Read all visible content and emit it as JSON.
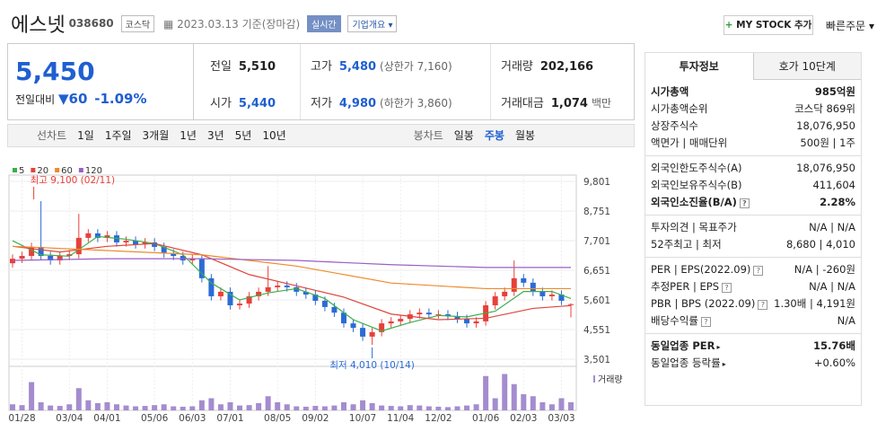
{
  "header": {
    "name": "에스넷",
    "code": "038680",
    "market": "코스닥",
    "date": "2023.03.13 기준(장마감)",
    "realtime": "실시간",
    "company_info": "기업개요",
    "my_stock": "MY STOCK 추가",
    "quick_order": "빠른주문"
  },
  "price": {
    "current": "5,450",
    "change_label": "전일대비",
    "change": "60",
    "change_pct": "-1.09%"
  },
  "quote": {
    "rows": [
      [
        {
          "label": "전일",
          "value": "5,510"
        },
        {
          "label": "고가",
          "value": "5,480",
          "note": "(상한가 7,160)"
        },
        {
          "label": "거래량",
          "value": "202,166"
        }
      ],
      [
        {
          "label": "시가",
          "value": "5,440"
        },
        {
          "label": "저가",
          "value": "4,980",
          "note": "(하한가 3,860)"
        },
        {
          "label": "거래대금",
          "value": "1,074",
          "note": "백만"
        }
      ]
    ]
  },
  "periods": {
    "line_label": "선차트",
    "line": [
      "1일",
      "1주일",
      "3개월",
      "1년",
      "3년",
      "5년",
      "10년"
    ],
    "candle_label": "봉차트",
    "candle": [
      "일봉",
      "주봉",
      "월봉"
    ],
    "active_candle": 1
  },
  "chart_data": {
    "type": "candlestick",
    "categories": [
      null,
      "01/28",
      null,
      null,
      null,
      null,
      "03/04",
      null,
      null,
      null,
      "04/01",
      null,
      null,
      null,
      null,
      "05/06",
      null,
      null,
      null,
      "06/03",
      null,
      null,
      null,
      "07/01",
      null,
      null,
      null,
      null,
      "08/05",
      null,
      null,
      null,
      "09/02",
      null,
      null,
      null,
      null,
      "10/07",
      null,
      null,
      null,
      "11/04",
      null,
      null,
      null,
      "12/02",
      null,
      null,
      null,
      null,
      "01/06",
      null,
      null,
      null,
      "02/03",
      null,
      null,
      null,
      "03/03",
      null
    ],
    "open": [
      6900,
      7060,
      7160,
      7480,
      7160,
      7000,
      7160,
      7220,
      7800,
      7960,
      7800,
      7890,
      7640,
      7700,
      7570,
      7640,
      7480,
      7250,
      7160,
      7000,
      7060,
      6370,
      5730,
      5890,
      5410,
      5470,
      5730,
      5890,
      6050,
      6110,
      6050,
      5890,
      5790,
      5570,
      5350,
      5150,
      4770,
      4610,
      4300,
      4460,
      4770,
      4840,
      4930,
      5090,
      5150,
      5090,
      5090,
      5030,
      4930,
      4770,
      4840,
      5410,
      5730,
      5890,
      6370,
      6210,
      5890,
      5730,
      5790,
      5440
    ],
    "high": [
      7210,
      7310,
      7630,
      9100,
      7310,
      7310,
      7370,
      8650,
      8110,
      8110,
      8040,
      8040,
      7850,
      7850,
      7790,
      7790,
      7630,
      7400,
      7310,
      7210,
      7210,
      6520,
      6040,
      6040,
      5620,
      5880,
      6040,
      6800,
      6260,
      6260,
      6200,
      6040,
      5940,
      5720,
      5500,
      5300,
      4920,
      4760,
      4610,
      4920,
      4990,
      5080,
      5240,
      5300,
      5300,
      5240,
      5240,
      5180,
      5080,
      4990,
      5560,
      5880,
      6040,
      7000,
      6520,
      6360,
      6040,
      5940,
      5940,
      5480
    ],
    "low": [
      6750,
      6910,
      7010,
      7010,
      6850,
      6850,
      7010,
      7070,
      7650,
      7650,
      7650,
      7490,
      7490,
      7420,
      7420,
      7330,
      7100,
      7010,
      6850,
      6850,
      6220,
      5580,
      5580,
      5260,
      5260,
      5320,
      5580,
      5740,
      5900,
      5900,
      5740,
      5640,
      5420,
      5200,
      5000,
      4620,
      4460,
      4150,
      4010,
      4310,
      4620,
      4690,
      4780,
      4940,
      4940,
      4940,
      4880,
      4780,
      4620,
      4620,
      4690,
      5260,
      5580,
      5740,
      6060,
      5740,
      5580,
      5580,
      5420,
      4980
    ],
    "close": [
      7060,
      7160,
      7480,
      7160,
      7000,
      7160,
      7220,
      7800,
      7960,
      7800,
      7890,
      7640,
      7700,
      7570,
      7640,
      7480,
      7250,
      7160,
      7000,
      7060,
      6370,
      5730,
      5890,
      5410,
      5470,
      5730,
      5890,
      6050,
      6110,
      6050,
      5890,
      5790,
      5570,
      5350,
      5150,
      4770,
      4610,
      4300,
      4460,
      4770,
      4840,
      4930,
      5090,
      5150,
      5090,
      5090,
      5030,
      4930,
      4770,
      4840,
      5410,
      5730,
      5890,
      6370,
      6210,
      5890,
      5730,
      5790,
      5570,
      5450
    ],
    "volume": [
      150000,
      130000,
      700000,
      200000,
      120000,
      110000,
      150000,
      550000,
      250000,
      180000,
      200000,
      150000,
      120000,
      100000,
      110000,
      130000,
      150000,
      100000,
      90000,
      100000,
      250000,
      300000,
      150000,
      200000,
      120000,
      130000,
      180000,
      350000,
      200000,
      150000,
      100000,
      90000,
      110000,
      100000,
      120000,
      200000,
      150000,
      250000,
      180000,
      120000,
      110000,
      100000,
      130000,
      120000,
      100000,
      90000,
      80000,
      100000,
      120000,
      150000,
      850000,
      300000,
      900000,
      650000,
      400000,
      350000,
      200000,
      150000,
      300000,
      202166
    ],
    "vlim": [
      0,
      1000000
    ],
    "volume_label": "거래량",
    "volume_color": "#a48ccf",
    "up_color": "#e8403a",
    "down_color": "#2b6bd6",
    "ylim": [
      3501,
      9801
    ],
    "yticks": [
      {
        "value": 9801,
        "label": "9,801"
      },
      {
        "value": 8751,
        "label": "8,751"
      },
      {
        "value": 7701,
        "label": "7,701"
      },
      {
        "value": 6651,
        "label": "6,651"
      },
      {
        "value": 5601,
        "label": "5,601"
      },
      {
        "value": 4551,
        "label": "4,551"
      },
      {
        "value": 3501,
        "label": "3,501"
      }
    ],
    "grid": true,
    "high_label": "최고 9,100 (02/11)",
    "low_label": "최저 4,010 (10/14)",
    "series": [
      {
        "name": "5",
        "color": "#3cae4a",
        "x": [
          0,
          3,
          6,
          9,
          12,
          15,
          18,
          21,
          24,
          27,
          30,
          33,
          36,
          39,
          42,
          45,
          48,
          51,
          54,
          57,
          59
        ],
        "values": [
          7700,
          7200,
          7150,
          7850,
          7750,
          7600,
          7200,
          6200,
          5600,
          5850,
          6000,
          5650,
          4900,
          4500,
          4800,
          5050,
          5000,
          5200,
          5900,
          5900,
          5650
        ]
      },
      {
        "name": "20",
        "color": "#e0453c",
        "x": [
          0,
          5,
          10,
          15,
          20,
          25,
          30,
          35,
          40,
          45,
          50,
          55,
          59
        ],
        "values": [
          7500,
          7300,
          7500,
          7600,
          7200,
          6500,
          6100,
          5700,
          5100,
          4900,
          4950,
          5300,
          5400
        ]
      },
      {
        "name": "60",
        "color": "#ee8a2c",
        "x": [
          0,
          10,
          20,
          30,
          40,
          50,
          59
        ],
        "values": [
          7500,
          7350,
          7200,
          6800,
          6200,
          6000,
          6000
        ]
      },
      {
        "name": "120",
        "color": "#9a5fc4",
        "x": [
          0,
          10,
          20,
          30,
          40,
          50,
          59
        ],
        "values": [
          7000,
          7060,
          7060,
          7000,
          6850,
          6750,
          6750
        ]
      }
    ]
  },
  "side": {
    "tabs": [
      "투자정보",
      "호가 10단계"
    ],
    "active_tab": 0,
    "sections": [
      [
        {
          "label": "시가총액",
          "value": "985억원",
          "bold": true
        },
        {
          "label": "시가총액순위",
          "value": "코스닥 869위"
        },
        {
          "label": "상장주식수",
          "value": "18,076,950"
        },
        {
          "label": "액면가 | 매매단위",
          "value": "500원 | 1주"
        }
      ],
      [
        {
          "label": "외국인한도주식수(A)",
          "value": "18,076,950"
        },
        {
          "label": "외국인보유주식수(B)",
          "value": "411,604"
        },
        {
          "label": "외국인소진율(B/A)",
          "value": "2.28%",
          "bold": true,
          "help": true
        }
      ],
      [
        {
          "label": "투자의견 | 목표주가",
          "value": "N/A | N/A"
        },
        {
          "label": "52주최고 | 최저",
          "value": "8,680 | 4,010"
        }
      ],
      [
        {
          "label": "PER | EPS(2022.09)",
          "value": "N/A | -260원",
          "help": true
        },
        {
          "label": "추정PER | EPS",
          "value": "N/A | N/A",
          "help": true
        },
        {
          "label": "PBR | BPS (2022.09)",
          "value": "1.30배 | 4,191원",
          "help": true
        },
        {
          "label": "배당수익률",
          "value": "N/A",
          "help": true
        }
      ],
      [
        {
          "label": "동일업종 PER",
          "value": "15.76배",
          "bold": true,
          "arrow": true
        },
        {
          "label": "동일업종 등락률",
          "value": "+0.60%",
          "up": true,
          "arrow": true
        }
      ]
    ]
  }
}
